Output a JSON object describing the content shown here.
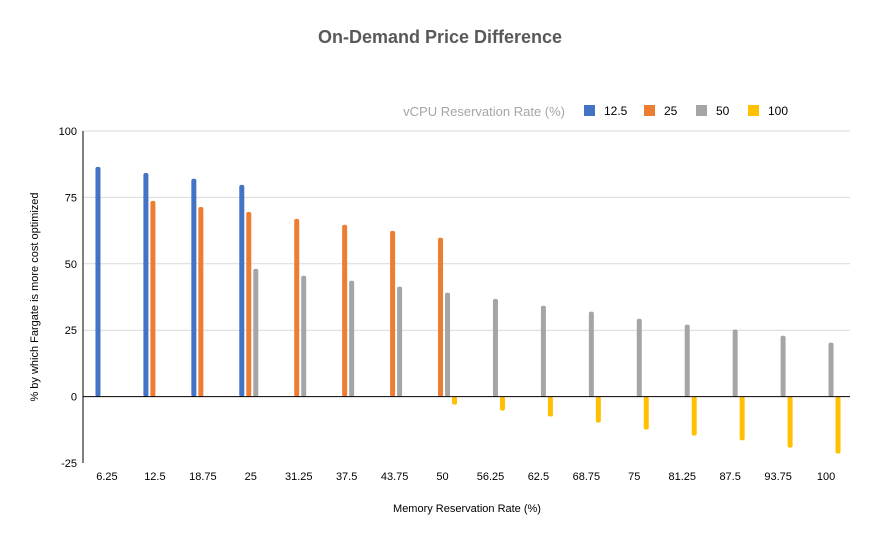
{
  "chart_data": {
    "type": "bar",
    "title": "On-Demand Price Difference",
    "xlabel": "Memory Reservation Rate (%)",
    "ylabel": "% by which Fargate is more cost optimized",
    "ylim": [
      -25,
      100
    ],
    "yticks": [
      100,
      75,
      50,
      25,
      0,
      -25
    ],
    "grid": true,
    "legend_title": "vCPU Reservation Rate (%)",
    "legend_position": "top-right",
    "categories": [
      "6.25",
      "12.5",
      "18.75",
      "25",
      "31.25",
      "37.5",
      "43.75",
      "50",
      "56.25",
      "62.5",
      "68.75",
      "75",
      "81.25",
      "87.5",
      "93.75",
      "100"
    ],
    "series": [
      {
        "name": "12.5",
        "color": "#4472c4",
        "values": [
          86.5,
          84.2,
          82,
          79.7,
          null,
          null,
          null,
          null,
          null,
          null,
          null,
          null,
          null,
          null,
          null,
          null
        ]
      },
      {
        "name": "25",
        "color": "#ed7d31",
        "values": [
          null,
          73.7,
          71.4,
          69.5,
          66.9,
          64.7,
          62.4,
          59.8,
          null,
          null,
          null,
          null,
          null,
          null,
          null,
          null
        ]
      },
      {
        "name": "50",
        "color": "#a5a5a5",
        "values": [
          null,
          null,
          null,
          48.1,
          45.5,
          43.6,
          41.4,
          39.1,
          36.8,
          34.2,
          32,
          29.3,
          27.1,
          25.2,
          22.9,
          20.3
        ]
      },
      {
        "name": "100",
        "color": "#ffc000",
        "values": [
          null,
          null,
          null,
          null,
          null,
          null,
          null,
          -3,
          -5.3,
          -7.5,
          -9.8,
          -12.4,
          -14.7,
          -16.5,
          -19.2,
          -21.4
        ]
      }
    ]
  }
}
